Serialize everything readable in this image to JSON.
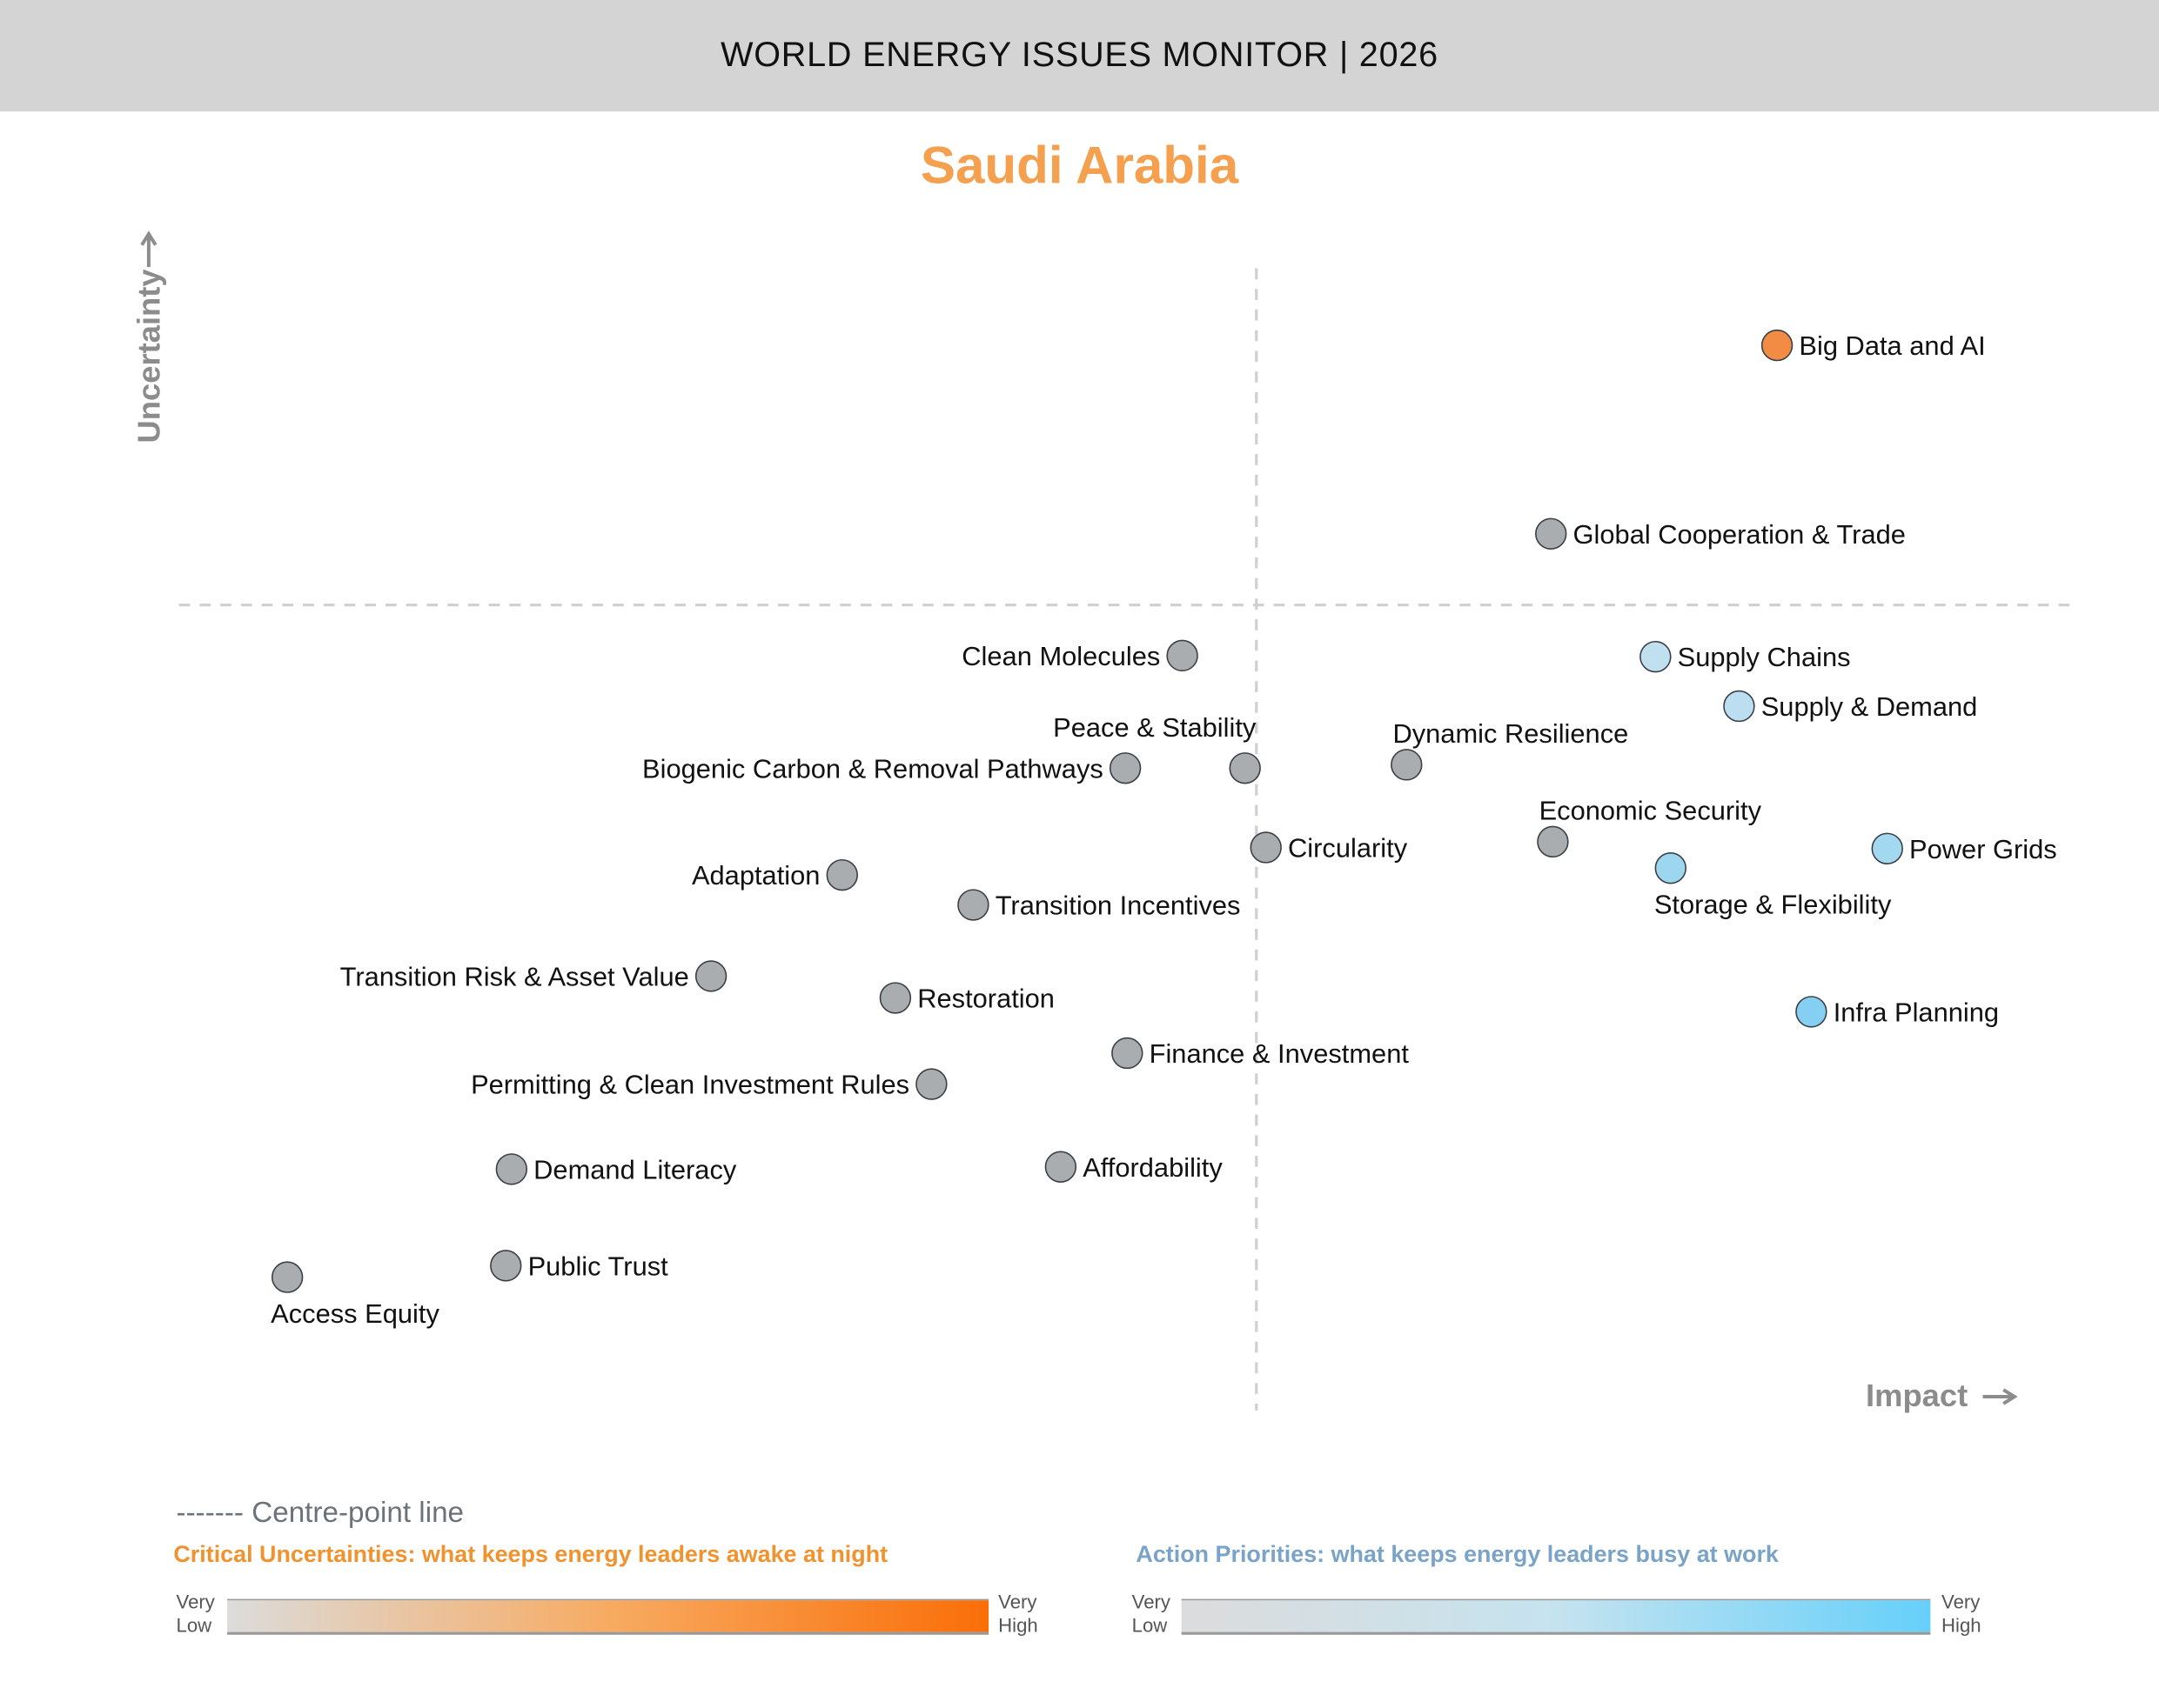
{
  "header": {
    "title": "WORLD ENERGY ISSUES MONITOR | 2026"
  },
  "country": "Saudi Arabia",
  "legend": {
    "centre_line": "------- Centre-point line",
    "uncertainty_title": "Critical Uncertainties: what keeps energy leaders awake at night",
    "priority_title": "Action Priorities: what keeps energy leaders busy at work",
    "very": "Very",
    "low": "Low",
    "high": "High",
    "uncertainty_colors": [
      "#dcdcdc",
      "#f7ab62",
      "#fa6e08"
    ],
    "priority_colors": [
      "#dcdcdc",
      "#c5e3ef",
      "#66d0fa"
    ]
  },
  "chart_data": {
    "type": "scatter",
    "title": "Saudi Arabia",
    "xlabel": "Impact",
    "ylabel": "Uncertainty",
    "xlim": [
      0,
      10
    ],
    "ylim": [
      0,
      10
    ],
    "centre": {
      "x": 5.67,
      "y": 7.01
    },
    "grid": false,
    "points": [
      {
        "name": "Big Data and AI",
        "x": 8.41,
        "y": 9.27,
        "color": "#f28c45",
        "label": "right"
      },
      {
        "name": "Global Cooperation & Trade",
        "x": 7.22,
        "y": 7.63,
        "color": "#a9adb0",
        "label": "right"
      },
      {
        "name": "Supply Chains",
        "x": 7.77,
        "y": 6.56,
        "color": "#c0e0ef",
        "label": "right"
      },
      {
        "name": "Supply & Demand",
        "x": 8.21,
        "y": 6.13,
        "color": "#bbdff0",
        "label": "right"
      },
      {
        "name": "Clean Molecules",
        "x": 5.28,
        "y": 6.57,
        "color": "#a9adb0",
        "label": "left"
      },
      {
        "name": "Peace & Stability",
        "x": 5.61,
        "y": 5.59,
        "color": "#a9adb0",
        "label": "above-left"
      },
      {
        "name": "Biogenic Carbon & Removal Pathways",
        "x": 4.98,
        "y": 5.59,
        "color": "#a9adb0",
        "label": "left"
      },
      {
        "name": "Dynamic Resilience",
        "x": 6.46,
        "y": 5.62,
        "color": "#a9adb0",
        "label": "above"
      },
      {
        "name": "Economic Security",
        "x": 7.23,
        "y": 4.95,
        "color": "#a9adb0",
        "label": "above"
      },
      {
        "name": "Circularity",
        "x": 5.72,
        "y": 4.9,
        "color": "#a9adb0",
        "label": "right"
      },
      {
        "name": "Storage & Flexibility",
        "x": 7.85,
        "y": 4.72,
        "color": "#9dd6ef",
        "label": "below"
      },
      {
        "name": "Power Grids",
        "x": 8.99,
        "y": 4.89,
        "color": "#a2d8f0",
        "label": "right"
      },
      {
        "name": "Adaptation",
        "x": 3.49,
        "y": 4.66,
        "color": "#a9adb0",
        "label": "left"
      },
      {
        "name": "Transition Incentives",
        "x": 4.18,
        "y": 4.4,
        "color": "#a9adb0",
        "label": "right"
      },
      {
        "name": "Transition Risk & Asset Value",
        "x": 2.8,
        "y": 3.78,
        "color": "#a9adb0",
        "label": "left"
      },
      {
        "name": "Restoration",
        "x": 3.77,
        "y": 3.59,
        "color": "#a9adb0",
        "label": "right"
      },
      {
        "name": "Infra Planning",
        "x": 8.59,
        "y": 3.47,
        "color": "#85d0f2",
        "label": "right"
      },
      {
        "name": "Finance & Investment",
        "x": 4.99,
        "y": 3.11,
        "color": "#a9adb0",
        "label": "right"
      },
      {
        "name": "Permitting & Clean Investment Rules",
        "x": 3.96,
        "y": 2.84,
        "color": "#a9adb0",
        "label": "left"
      },
      {
        "name": "Demand Literacy",
        "x": 1.75,
        "y": 2.1,
        "color": "#a9adb0",
        "label": "right"
      },
      {
        "name": "Affordability",
        "x": 4.64,
        "y": 2.12,
        "color": "#a9adb0",
        "label": "right"
      },
      {
        "name": "Public Trust",
        "x": 1.72,
        "y": 1.26,
        "color": "#a9adb0",
        "label": "right"
      },
      {
        "name": "Access Equity",
        "x": 0.57,
        "y": 1.16,
        "color": "#a9adb0",
        "label": "below"
      }
    ]
  }
}
